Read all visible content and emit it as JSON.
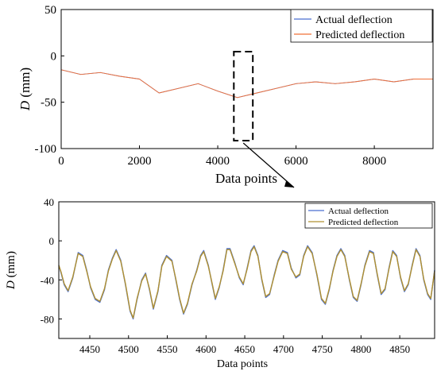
{
  "colors": {
    "actual": "#4a6fd0",
    "predicted_top": "#f07038",
    "predicted_bottom": "#b09030",
    "axis": "#000000",
    "zoom_box": "#000000"
  },
  "chart_data": [
    {
      "type": "line",
      "xlabel": "Data points",
      "ylabel_italic": "D",
      "ylabel_unit": " (mm)",
      "xlim": [
        0,
        9500
      ],
      "ylim": [
        -100,
        50
      ],
      "xticks": [
        0,
        2000,
        4000,
        6000,
        8000
      ],
      "xtick_labels": [
        "0",
        "2000",
        "4000",
        "6000",
        "8000"
      ],
      "yticks": [
        50,
        0,
        -50,
        -100
      ],
      "ytick_labels": [
        "50",
        "0",
        "-50",
        "-100"
      ],
      "legend_position": "top-right",
      "zoom_window_x": [
        4410,
        4895
      ],
      "series": [
        {
          "name": "Actual deflection",
          "x": [
            0,
            500,
            1000,
            1500,
            2000,
            2500,
            3000,
            3500,
            4000,
            4500,
            5000,
            5500,
            6000,
            6500,
            7000,
            7500,
            8000,
            8500,
            9000,
            9500
          ],
          "values": [
            -15,
            -20,
            -18,
            -22,
            -25,
            -40,
            -35,
            -30,
            -38,
            -45,
            -40,
            -35,
            -30,
            -28,
            -30,
            -28,
            -25,
            -28,
            -25,
            -25
          ]
        },
        {
          "name": "Predicted deflection",
          "x": [
            0,
            500,
            1000,
            1500,
            2000,
            2500,
            3000,
            3500,
            4000,
            4500,
            5000,
            5500,
            6000,
            6500,
            7000,
            7500,
            8000,
            8500,
            9000,
            9500
          ],
          "values": [
            -15,
            -20,
            -18,
            -22,
            -25,
            -40,
            -35,
            -30,
            -38,
            -45,
            -40,
            -35,
            -30,
            -28,
            -30,
            -28,
            -25,
            -28,
            -25,
            -25
          ]
        }
      ]
    },
    {
      "type": "line",
      "xlabel": "Data points",
      "ylabel_italic": "D",
      "ylabel_unit": " (mm)",
      "xlim": [
        4410,
        4895
      ],
      "ylim": [
        -100,
        40
      ],
      "xticks": [
        4450,
        4500,
        4550,
        4600,
        4650,
        4700,
        4750,
        4800,
        4850
      ],
      "xtick_labels": [
        "4450",
        "4500",
        "4550",
        "4600",
        "4650",
        "4700",
        "4750",
        "4800",
        "4850"
      ],
      "yticks": [
        40,
        0,
        -40,
        -80
      ],
      "ytick_labels": [
        "40",
        "0",
        "-40",
        "-80"
      ],
      "legend_position": "top-right",
      "series": [
        {
          "name": "Actual deflection",
          "x": [
            4410,
            4413,
            4417,
            4422,
            4428,
            4435,
            4441,
            4446,
            4451,
            4457,
            4463,
            4469,
            4474,
            4479,
            4484,
            4490,
            4496,
            4502,
            4506,
            4511,
            4517,
            4522,
            4527,
            4532,
            4538,
            4543,
            4549,
            4556,
            4561,
            4566,
            4571,
            4576,
            4582,
            4588,
            4593,
            4597,
            4603,
            4608,
            4612,
            4617,
            4622,
            4627,
            4631,
            4637,
            4643,
            4648,
            4653,
            4658,
            4662,
            4667,
            4672,
            4677,
            4682,
            4688,
            4693,
            4699,
            4705,
            4710,
            4716,
            4721,
            4726,
            4731,
            4737,
            4743,
            4749,
            4754,
            4759,
            4764,
            4769,
            4774,
            4779,
            4785,
            4790,
            4795,
            4800,
            4805,
            4811,
            4816,
            4821,
            4826,
            4831,
            4836,
            4841,
            4846,
            4851,
            4856,
            4861,
            4866,
            4871,
            4876,
            4881,
            4886,
            4890,
            4895
          ],
          "values": [
            -25,
            -33,
            -45,
            -52,
            -38,
            -12,
            -15,
            -30,
            -48,
            -60,
            -63,
            -50,
            -30,
            -18,
            -9,
            -20,
            -45,
            -72,
            -80,
            -60,
            -40,
            -33,
            -50,
            -70,
            -52,
            -25,
            -15,
            -20,
            -40,
            -60,
            -75,
            -65,
            -45,
            -30,
            -15,
            -10,
            -25,
            -45,
            -60,
            -48,
            -30,
            -8,
            -8,
            -22,
            -38,
            -45,
            -28,
            -10,
            -5,
            -15,
            -40,
            -58,
            -55,
            -35,
            -20,
            -10,
            -12,
            -28,
            -38,
            -35,
            -15,
            -5,
            -12,
            -35,
            -60,
            -65,
            -50,
            -30,
            -15,
            -8,
            -15,
            -40,
            -58,
            -62,
            -45,
            -25,
            -10,
            -12,
            -35,
            -55,
            -50,
            -28,
            -10,
            -15,
            -38,
            -52,
            -45,
            -25,
            -8,
            -15,
            -40,
            -55,
            -60,
            -30
          ]
        },
        {
          "name": "Predicted deflection",
          "x": [
            4410,
            4413,
            4417,
            4422,
            4428,
            4435,
            4441,
            4446,
            4451,
            4457,
            4463,
            4469,
            4474,
            4479,
            4484,
            4490,
            4496,
            4502,
            4506,
            4511,
            4517,
            4522,
            4527,
            4532,
            4538,
            4543,
            4549,
            4556,
            4561,
            4566,
            4571,
            4576,
            4582,
            4588,
            4593,
            4597,
            4603,
            4608,
            4612,
            4617,
            4622,
            4627,
            4631,
            4637,
            4643,
            4648,
            4653,
            4658,
            4662,
            4667,
            4672,
            4677,
            4682,
            4688,
            4693,
            4699,
            4705,
            4710,
            4716,
            4721,
            4726,
            4731,
            4737,
            4743,
            4749,
            4754,
            4759,
            4764,
            4769,
            4774,
            4779,
            4785,
            4790,
            4795,
            4800,
            4805,
            4811,
            4816,
            4821,
            4826,
            4831,
            4836,
            4841,
            4846,
            4851,
            4856,
            4861,
            4866,
            4871,
            4876,
            4881,
            4886,
            4890,
            4895
          ],
          "values": [
            -25,
            -32,
            -44,
            -51,
            -37,
            -13,
            -16,
            -31,
            -47,
            -59,
            -62,
            -49,
            -31,
            -19,
            -10,
            -21,
            -44,
            -71,
            -79,
            -59,
            -41,
            -34,
            -49,
            -69,
            -51,
            -26,
            -16,
            -21,
            -39,
            -59,
            -74,
            -64,
            -44,
            -31,
            -16,
            -11,
            -26,
            -44,
            -59,
            -47,
            -31,
            -9,
            -9,
            -23,
            -37,
            -44,
            -29,
            -11,
            -6,
            -16,
            -39,
            -57,
            -54,
            -36,
            -21,
            -11,
            -13,
            -29,
            -37,
            -34,
            -16,
            -6,
            -13,
            -34,
            -59,
            -64,
            -49,
            -31,
            -16,
            -9,
            -16,
            -39,
            -57,
            -61,
            -44,
            -26,
            -11,
            -13,
            -34,
            -54,
            -49,
            -29,
            -11,
            -16,
            -37,
            -51,
            -44,
            -26,
            -9,
            -16,
            -39,
            -54,
            -59,
            -31
          ]
        }
      ]
    }
  ]
}
